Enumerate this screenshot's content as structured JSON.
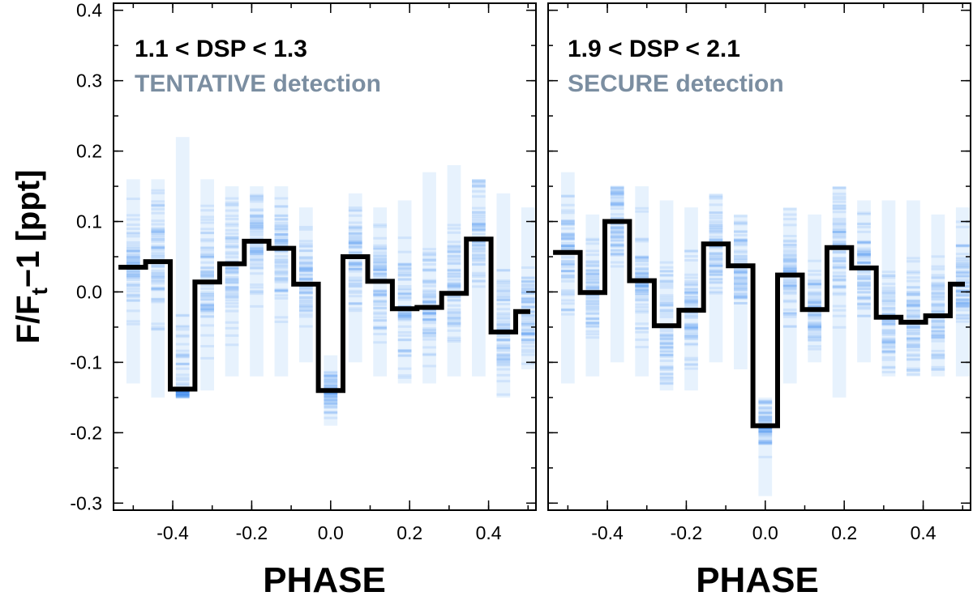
{
  "chart_data": [
    {
      "type": "line",
      "panel": "left",
      "title": "1.1 < DSP < 1.3",
      "subtitle": "TENTATIVE detection",
      "xlabel": "PHASE",
      "ylabel": "F/F_t−1  [ppt]",
      "xlim": [
        -0.55,
        0.52
      ],
      "ylim": [
        -0.31,
        0.41
      ],
      "xticks": [
        "-0.4",
        "-0.2",
        "0.0",
        "0.2",
        "0.4"
      ],
      "yticks": [
        "-0.3",
        "-0.2",
        "-0.1",
        "0.0",
        "0.1",
        "0.2",
        "0.3",
        "0.4"
      ],
      "bin_width": 0.0625,
      "bin_centers": [
        -0.5,
        -0.4375,
        -0.375,
        -0.3125,
        -0.25,
        -0.1875,
        -0.125,
        -0.0625,
        0.0,
        0.0625,
        0.125,
        0.1875,
        0.25,
        0.3125,
        0.375,
        0.4375,
        0.5
      ],
      "series": [
        {
          "name": "binned flux",
          "values": [
            0.035,
            0.043,
            -0.138,
            0.014,
            0.04,
            0.072,
            0.062,
            0.011,
            -0.14,
            0.05,
            0.015,
            -0.024,
            -0.022,
            -0.002,
            0.075,
            -0.057,
            -0.028
          ]
        },
        {
          "name": "spread_low",
          "values": [
            -0.13,
            -0.15,
            -0.15,
            -0.14,
            -0.12,
            -0.12,
            -0.12,
            -0.1,
            -0.19,
            -0.1,
            -0.12,
            -0.13,
            -0.13,
            -0.12,
            -0.12,
            -0.15,
            -0.11
          ]
        },
        {
          "name": "spread_high",
          "values": [
            0.16,
            0.16,
            0.22,
            0.16,
            0.15,
            0.15,
            0.15,
            0.12,
            -0.09,
            0.14,
            0.12,
            0.13,
            0.17,
            0.18,
            0.16,
            0.14,
            0.12
          ]
        }
      ]
    },
    {
      "type": "line",
      "panel": "right",
      "title": "1.9 < DSP < 2.1",
      "subtitle": "SECURE detection",
      "xlabel": "PHASE",
      "xlim": [
        -0.55,
        0.52
      ],
      "ylim": [
        -0.31,
        0.41
      ],
      "xticks": [
        "-0.4",
        "-0.2",
        "0.0",
        "0.2",
        "0.4"
      ],
      "bin_width": 0.0625,
      "bin_centers": [
        -0.5,
        -0.4375,
        -0.375,
        -0.3125,
        -0.25,
        -0.1875,
        -0.125,
        -0.0625,
        0.0,
        0.0625,
        0.125,
        0.1875,
        0.25,
        0.3125,
        0.375,
        0.4375,
        0.5
      ],
      "series": [
        {
          "name": "binned flux",
          "values": [
            0.056,
            -0.001,
            0.1,
            0.016,
            -0.048,
            -0.026,
            0.068,
            0.037,
            -0.19,
            0.024,
            -0.025,
            0.063,
            0.034,
            -0.036,
            -0.043,
            -0.034,
            0.011
          ]
        },
        {
          "name": "spread_low",
          "values": [
            -0.13,
            -0.12,
            -0.1,
            -0.12,
            -0.14,
            -0.14,
            -0.1,
            -0.11,
            -0.29,
            -0.13,
            -0.1,
            -0.15,
            -0.1,
            -0.12,
            -0.12,
            -0.12,
            -0.12
          ]
        },
        {
          "name": "spread_high",
          "values": [
            0.17,
            0.11,
            0.15,
            0.15,
            0.13,
            0.12,
            0.14,
            0.11,
            -0.15,
            0.12,
            0.11,
            0.15,
            0.13,
            0.13,
            0.13,
            0.11,
            0.12
          ]
        }
      ]
    }
  ]
}
